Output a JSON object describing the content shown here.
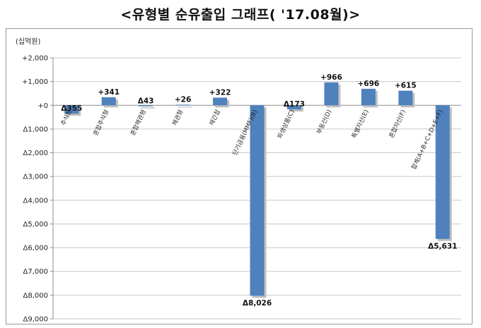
{
  "chart_data": {
    "type": "bar",
    "title": "<유형별 순유출입 그래프( '17.08월)>",
    "unit_label": "(십억원)",
    "categories": [
      "주식형",
      "혼합주식형",
      "혼합채권형",
      "채권형",
      "재간접",
      "단기금융(MMF)(B)",
      "파생상품(C)",
      "부동산(D)",
      "특별자산(E)",
      "혼합자산(F)",
      "합계(A+B+C+D+E+F)"
    ],
    "values": [
      -355,
      341,
      -43,
      26,
      322,
      -8026,
      -173,
      966,
      696,
      615,
      -5631
    ],
    "data_labels": [
      "Δ355",
      "+341",
      "Δ43",
      "+26",
      "+322",
      "Δ8,026",
      "Δ173",
      "+966",
      "+696",
      "+615",
      "Δ5,631"
    ],
    "ylim": [
      -9000,
      2000
    ],
    "y_ticks": [
      2000,
      1000,
      0,
      -1000,
      -2000,
      -3000,
      -4000,
      -5000,
      -6000,
      -7000,
      -8000,
      -9000
    ],
    "y_tick_labels": [
      "+2,000",
      "+1,000",
      "+0",
      "Δ1,000",
      "Δ2,000",
      "Δ3,000",
      "Δ4,000",
      "Δ5,000",
      "Δ6,000",
      "Δ7,000",
      "Δ8,000",
      "Δ9,000"
    ],
    "grid": true,
    "bar_color": "#4f81bd"
  }
}
